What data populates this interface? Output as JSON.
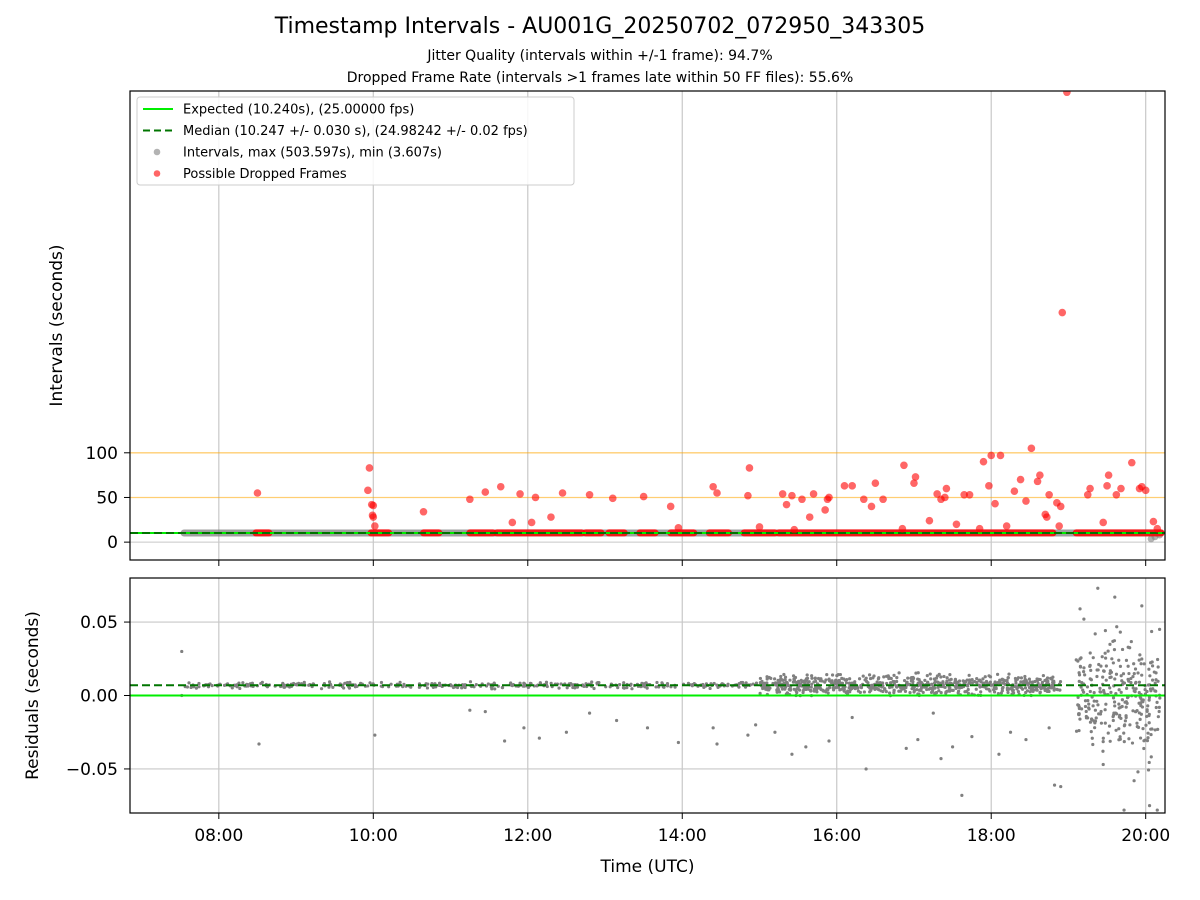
{
  "title": "Timestamp Intervals - AU001G_20250702_072950_343305",
  "subtitle_1": "Jitter Quality (intervals within +/-1 frame): 94.7%",
  "subtitle_2": "Dropped Frame Rate (intervals >1 frames late within 50 FF files): 55.6%",
  "colors": {
    "expected": "#00ee00",
    "median": "#007500",
    "intervals": "#808080",
    "dropped": "#ff0000",
    "threshold_lines": "#ffa500",
    "grid": "#c8c8c8"
  },
  "chart_data": [
    {
      "type": "scatter",
      "panel": "top",
      "ylabel": "Intervals (seconds)",
      "xlim_hours": [
        6.85,
        20.25
      ],
      "ylim": [
        -20,
        505
      ],
      "yticks": [
        0,
        50,
        100
      ],
      "ytick_labels": [
        "0",
        "50",
        "100"
      ],
      "xticks_hours": [
        8,
        10,
        12,
        14,
        16,
        18,
        20
      ],
      "xtick_labels": [
        "08:00",
        "10:00",
        "12:00",
        "14:00",
        "16:00",
        "18:00",
        "20:00"
      ],
      "grid": true,
      "legend_position": "top-left",
      "horizontal_lines": [
        {
          "name": "Expected (10.240s), (25.00000 fps)",
          "y": 10.24,
          "style": "solid",
          "color_key": "expected"
        },
        {
          "name": "Median (10.247 +/- 0.030 s), (24.98242 +/- 0.02 fps)",
          "y": 10.247,
          "style": "dashed",
          "color_key": "median"
        }
      ],
      "threshold_lines_y": [
        50,
        100
      ],
      "legend": [
        {
          "label": "Expected (10.240s), (25.00000 fps)",
          "kind": "line",
          "color_key": "expected"
        },
        {
          "label": "Median (10.247 +/- 0.030 s), (24.98242 +/- 0.02 fps)",
          "kind": "dashed",
          "color_key": "median"
        },
        {
          "label": "Intervals, max (503.597s), min (3.607s)",
          "kind": "dot",
          "color_key": "intervals"
        },
        {
          "label": "Possible Dropped Frames",
          "kind": "dot",
          "color_key": "dropped"
        }
      ],
      "series": [
        {
          "name": "Intervals, max (503.597s), min (3.607s)",
          "baseline_band": {
            "x_from_hours": 7.55,
            "x_to_hours": 20.2,
            "y": 10.25
          },
          "points": [
            [
              20.07,
              3.6
            ],
            [
              20.12,
              6
            ],
            [
              20.18,
              8
            ]
          ]
        },
        {
          "name": "Possible Dropped Frames",
          "dense_segments": [
            {
              "from": 8.48,
              "to": 8.65,
              "y": 10.3
            },
            {
              "from": 9.97,
              "to": 10.2,
              "y": 10.3
            },
            {
              "from": 10.65,
              "to": 10.85,
              "y": 10.3
            },
            {
              "from": 11.25,
              "to": 11.55,
              "y": 10.3
            },
            {
              "from": 11.6,
              "to": 12.7,
              "y": 10.3
            },
            {
              "from": 12.75,
              "to": 12.95,
              "y": 10.3
            },
            {
              "from": 13.05,
              "to": 13.25,
              "y": 10.3
            },
            {
              "from": 13.45,
              "to": 13.65,
              "y": 10.3
            },
            {
              "from": 13.85,
              "to": 14.15,
              "y": 10.3
            },
            {
              "from": 14.35,
              "to": 14.6,
              "y": 10.3
            },
            {
              "from": 14.8,
              "to": 15.2,
              "y": 10.3
            },
            {
              "from": 15.25,
              "to": 18.8,
              "y": 10.3
            },
            {
              "from": 19.1,
              "to": 20.2,
              "y": 10.3
            }
          ],
          "points": [
            [
              8.5,
              55
            ],
            [
              9.95,
              83
            ],
            [
              9.93,
              58
            ],
            [
              9.98,
              42
            ],
            [
              10.0,
              41
            ],
            [
              9.99,
              30
            ],
            [
              10.0,
              28
            ],
            [
              10.02,
              18
            ],
            [
              10.65,
              34
            ],
            [
              11.25,
              48
            ],
            [
              11.45,
              56
            ],
            [
              11.65,
              62
            ],
            [
              11.8,
              22
            ],
            [
              11.9,
              54
            ],
            [
              12.05,
              22
            ],
            [
              12.1,
              50
            ],
            [
              12.3,
              28
            ],
            [
              12.45,
              55
            ],
            [
              12.8,
              53
            ],
            [
              13.1,
              49
            ],
            [
              13.5,
              51
            ],
            [
              13.85,
              40
            ],
            [
              13.95,
              16
            ],
            [
              14.4,
              62
            ],
            [
              14.45,
              55
            ],
            [
              14.85,
              52
            ],
            [
              14.87,
              83
            ],
            [
              15.0,
              17
            ],
            [
              15.3,
              54
            ],
            [
              15.35,
              42
            ],
            [
              15.42,
              52
            ],
            [
              15.45,
              14
            ],
            [
              15.55,
              48
            ],
            [
              15.65,
              28
            ],
            [
              15.7,
              54
            ],
            [
              15.85,
              36
            ],
            [
              15.88,
              48
            ],
            [
              15.9,
              50
            ],
            [
              16.1,
              63
            ],
            [
              16.2,
              63
            ],
            [
              16.35,
              48
            ],
            [
              16.45,
              40
            ],
            [
              16.5,
              66
            ],
            [
              16.6,
              48
            ],
            [
              16.85,
              15
            ],
            [
              16.87,
              86
            ],
            [
              17.0,
              66
            ],
            [
              17.02,
              73
            ],
            [
              17.2,
              24
            ],
            [
              17.3,
              54
            ],
            [
              17.35,
              48
            ],
            [
              17.4,
              50
            ],
            [
              17.42,
              60
            ],
            [
              17.55,
              20
            ],
            [
              17.65,
              53
            ],
            [
              17.72,
              53
            ],
            [
              17.85,
              15
            ],
            [
              17.9,
              90
            ],
            [
              17.97,
              63
            ],
            [
              18.0,
              97
            ],
            [
              18.05,
              43
            ],
            [
              18.12,
              97
            ],
            [
              18.2,
              18
            ],
            [
              18.3,
              57
            ],
            [
              18.38,
              70
            ],
            [
              18.45,
              46
            ],
            [
              18.52,
              105
            ],
            [
              18.6,
              68
            ],
            [
              18.63,
              75
            ],
            [
              18.7,
              31
            ],
            [
              18.72,
              28
            ],
            [
              18.75,
              53
            ],
            [
              18.85,
              44
            ],
            [
              18.88,
              18
            ],
            [
              18.9,
              40
            ],
            [
              18.92,
              257
            ],
            [
              18.98,
              503.6
            ],
            [
              19.25,
              53
            ],
            [
              19.28,
              60
            ],
            [
              19.45,
              22
            ],
            [
              19.5,
              63
            ],
            [
              19.52,
              75
            ],
            [
              19.62,
              53
            ],
            [
              19.68,
              60
            ],
            [
              19.82,
              89
            ],
            [
              19.92,
              60
            ],
            [
              19.95,
              62
            ],
            [
              20.0,
              58
            ],
            [
              20.1,
              23
            ],
            [
              20.15,
              15
            ]
          ]
        }
      ]
    },
    {
      "type": "scatter",
      "panel": "bottom",
      "xlabel": "Time (UTC)",
      "ylabel": "Residuals (seconds)",
      "xlim_hours": [
        6.85,
        20.25
      ],
      "ylim": [
        -0.08,
        0.08
      ],
      "yticks": [
        -0.05,
        0.0,
        0.05
      ],
      "ytick_labels": [
        "−0.05",
        "0.00",
        "0.05"
      ],
      "xticks_hours": [
        8,
        10,
        12,
        14,
        16,
        18,
        20
      ],
      "xtick_labels": [
        "08:00",
        "10:00",
        "12:00",
        "14:00",
        "16:00",
        "18:00",
        "20:00"
      ],
      "grid": true,
      "horizontal_lines": [
        {
          "name": "Expected",
          "y": 0.0,
          "style": "solid",
          "color_key": "expected"
        },
        {
          "name": "Median",
          "y": 0.007,
          "style": "dashed",
          "color_key": "median"
        }
      ],
      "series": [
        {
          "name": "Residuals",
          "bands": [
            {
              "from": 7.55,
              "to": 15.0,
              "y": 0.007,
              "spread": 0.0015
            },
            {
              "from": 15.0,
              "to": 18.9,
              "y": 0.007,
              "spread": 0.005
            },
            {
              "from": 19.1,
              "to": 20.2,
              "y": 0.0,
              "spread": 0.03
            }
          ],
          "points": [
            [
              7.52,
              0.03
            ],
            [
              7.52,
              0.0
            ],
            [
              8.52,
              -0.033
            ],
            [
              10.02,
              -0.027
            ],
            [
              11.25,
              -0.01
            ],
            [
              11.45,
              -0.011
            ],
            [
              11.7,
              -0.031
            ],
            [
              11.95,
              -0.022
            ],
            [
              12.15,
              -0.029
            ],
            [
              12.5,
              -0.025
            ],
            [
              12.8,
              -0.012
            ],
            [
              13.15,
              -0.017
            ],
            [
              13.55,
              -0.022
            ],
            [
              13.95,
              -0.032
            ],
            [
              14.4,
              -0.022
            ],
            [
              14.45,
              -0.033
            ],
            [
              14.85,
              -0.027
            ],
            [
              14.95,
              -0.02
            ],
            [
              15.2,
              -0.025
            ],
            [
              15.42,
              -0.04
            ],
            [
              15.6,
              -0.035
            ],
            [
              15.9,
              -0.031
            ],
            [
              16.2,
              -0.015
            ],
            [
              16.38,
              -0.05
            ],
            [
              16.9,
              -0.036
            ],
            [
              17.05,
              -0.03
            ],
            [
              17.25,
              -0.012
            ],
            [
              17.35,
              -0.043
            ],
            [
              17.5,
              -0.035
            ],
            [
              17.62,
              -0.068
            ],
            [
              17.75,
              -0.028
            ],
            [
              18.1,
              -0.04
            ],
            [
              18.25,
              -0.025
            ],
            [
              18.45,
              -0.03
            ],
            [
              18.75,
              -0.022
            ],
            [
              18.82,
              -0.061
            ],
            [
              18.9,
              -0.062
            ],
            [
              19.15,
              0.059
            ],
            [
              19.2,
              0.052
            ],
            [
              19.38,
              0.073
            ],
            [
              19.45,
              -0.047
            ],
            [
              19.6,
              0.067
            ],
            [
              19.72,
              -0.078
            ],
            [
              19.85,
              -0.058
            ],
            [
              19.95,
              0.061
            ],
            [
              19.9,
              -0.052
            ],
            [
              20.05,
              -0.075
            ],
            [
              20.15,
              -0.078
            ],
            [
              20.18,
              0.045
            ]
          ]
        }
      ]
    }
  ]
}
